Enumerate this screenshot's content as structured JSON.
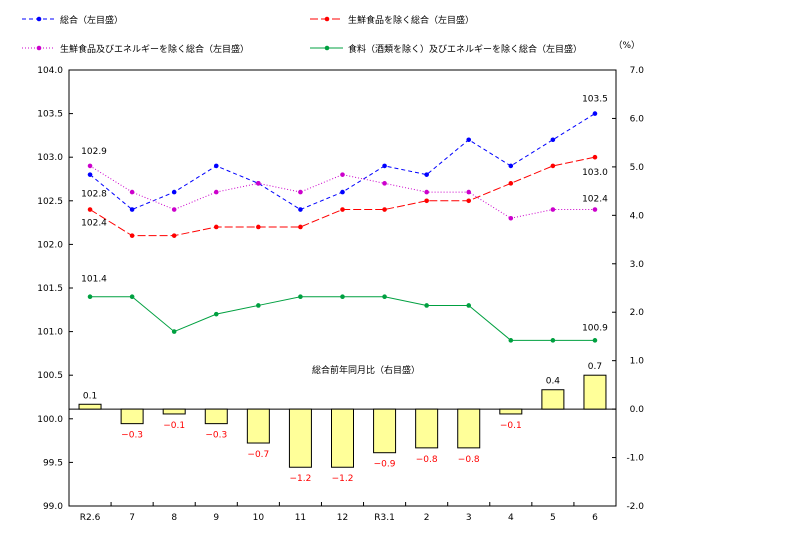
{
  "chart_data": {
    "type": "line+bar",
    "categories": [
      "R2.6",
      "7",
      "8",
      "9",
      "10",
      "11",
      "12",
      "R3.1",
      "2",
      "3",
      "4",
      "5",
      "6"
    ],
    "left_axis": {
      "ylim": [
        99.0,
        104.0
      ],
      "ticks": [
        "99.0",
        "99.5",
        "100.0",
        "100.5",
        "101.0",
        "101.5",
        "102.0",
        "102.5",
        "103.0",
        "103.5",
        "104.0"
      ]
    },
    "right_axis": {
      "unit": "（%）",
      "ylim": [
        -2.0,
        7.0
      ],
      "ticks": [
        "-2.0",
        "-1.0",
        "0.0",
        "1.0",
        "2.0",
        "3.0",
        "4.0",
        "5.0",
        "6.0",
        "7.0"
      ]
    },
    "grid": false,
    "legend_position": "top",
    "series": [
      {
        "name": "総合（左目盛）",
        "axis": "left",
        "style": "dashed",
        "color": "#0000ff",
        "values": [
          102.8,
          102.4,
          102.6,
          102.9,
          102.7,
          102.4,
          102.6,
          102.9,
          102.8,
          103.2,
          102.9,
          103.2,
          103.5
        ],
        "labels": {
          "first": "102.8",
          "last": "103.5"
        }
      },
      {
        "name": "生鮮食品を除く総合（左目盛）",
        "axis": "left",
        "style": "longdash",
        "color": "#ff0000",
        "values": [
          102.4,
          102.1,
          102.1,
          102.2,
          102.2,
          102.2,
          102.4,
          102.4,
          102.5,
          102.5,
          102.7,
          102.9,
          103.0
        ],
        "labels": {
          "first": "102.4",
          "last": "103.0"
        }
      },
      {
        "name": "生鮮食品及びエネルギーを除く総合（左目盛）",
        "axis": "left",
        "style": "dotted",
        "color": "#cc00cc",
        "values": [
          102.9,
          102.6,
          102.4,
          102.6,
          102.7,
          102.6,
          102.8,
          102.7,
          102.6,
          102.6,
          102.3,
          102.4,
          102.4
        ],
        "labels": {
          "first": "102.9",
          "last": "102.4"
        }
      },
      {
        "name": "食料（酒類を除く）及びエネルギーを除く総合（左目盛）",
        "axis": "left",
        "style": "solid",
        "color": "#00a040",
        "values": [
          101.4,
          101.4,
          101.0,
          101.2,
          101.3,
          101.4,
          101.4,
          101.4,
          101.3,
          101.3,
          100.9,
          100.9,
          100.9
        ],
        "labels": {
          "first": "101.4",
          "last": "100.9"
        }
      },
      {
        "name": "総合前年同月比（右目盛）",
        "axis": "right",
        "type": "bar",
        "color": "#ffff99",
        "values": [
          0.1,
          -0.3,
          -0.1,
          -0.3,
          -0.7,
          -1.2,
          -1.2,
          -0.9,
          -0.8,
          -0.8,
          -0.1,
          0.4,
          0.7
        ]
      }
    ]
  }
}
